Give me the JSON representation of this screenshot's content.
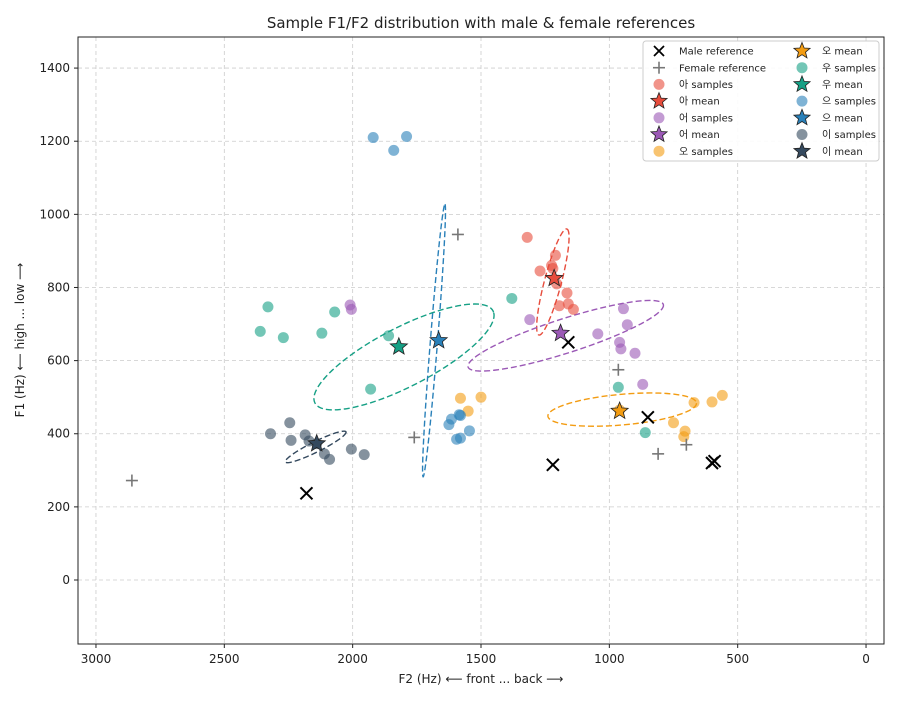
{
  "chart_data": {
    "type": "scatter",
    "title": "Sample F1/F2 distribution with male & female references",
    "xlabel": "F2 (Hz) ⟵ front ... back ⟶",
    "ylabel": "F1 (Hz) ⟵ high ... low ⟶",
    "xlim": [
      3070,
      -70
    ],
    "ylim": [
      1485,
      -175
    ],
    "x_reversed": true,
    "y_reversed": true,
    "xticks": [
      3000,
      2500,
      2000,
      1500,
      1000,
      500,
      0
    ],
    "yticks": [
      0,
      200,
      400,
      600,
      800,
      1000,
      1200,
      1400
    ],
    "grid": true,
    "legend_placement": "top-right",
    "male_reference": {
      "label": "Male reference",
      "color": "#000000",
      "points": [
        [
          2180,
          237
        ],
        [
          1220,
          315
        ],
        [
          850,
          445
        ],
        [
          1160,
          650
        ],
        [
          600,
          320
        ],
        [
          590,
          325
        ]
      ]
    },
    "female_reference": {
      "label": "Female reference",
      "color": "#777777",
      "points": [
        [
          2860,
          272
        ],
        [
          1760,
          390
        ],
        [
          810,
          345
        ],
        [
          700,
          370
        ],
        [
          965,
          575
        ],
        [
          1590,
          945
        ]
      ]
    },
    "vowels": [
      {
        "vowel": "아",
        "samples_label": "아 samples",
        "mean_label": "아 mean",
        "color": "#e74c3c",
        "mean": [
          1215,
          825
        ],
        "ellipse": {
          "cx": 1220,
          "cy": 815,
          "rx": 155,
          "ry": 32,
          "angle_deg": -69
        },
        "samples": [
          [
            1320,
            937
          ],
          [
            1270,
            845
          ],
          [
            1225,
            860
          ],
          [
            1220,
            852
          ],
          [
            1210,
            888
          ],
          [
            1195,
            750
          ],
          [
            1165,
            785
          ],
          [
            1160,
            755
          ],
          [
            1140,
            740
          ],
          [
            1205,
            810
          ]
        ]
      },
      {
        "vowel": "어",
        "samples_label": "어 samples",
        "mean_label": "어 mean",
        "color": "#9b59b6",
        "mean": [
          1190,
          675
        ],
        "ellipse": {
          "cx": 1170,
          "cy": 668,
          "rx": 390,
          "ry": 48,
          "angle_deg": -12.5
        },
        "samples": [
          [
            2005,
            740
          ],
          [
            2010,
            752
          ],
          [
            1310,
            712
          ],
          [
            1045,
            673
          ],
          [
            960,
            650
          ],
          [
            955,
            632
          ],
          [
            930,
            698
          ],
          [
            900,
            620
          ],
          [
            870,
            535
          ],
          [
            945,
            742
          ]
        ]
      },
      {
        "vowel": "오",
        "samples_label": "오 samples",
        "mean_label": "오 mean",
        "color": "#f39c12",
        "mean": [
          960,
          462
        ],
        "ellipse": {
          "cx": 950,
          "cy": 466,
          "rx": 290,
          "ry": 42,
          "angle_deg": -3.5
        },
        "samples": [
          [
            1580,
            497
          ],
          [
            1550,
            462
          ],
          [
            1500,
            500
          ],
          [
            750,
            430
          ],
          [
            710,
            392
          ],
          [
            705,
            407
          ],
          [
            670,
            485
          ],
          [
            600,
            487
          ],
          [
            560,
            505
          ],
          [
            960,
            465
          ]
        ]
      },
      {
        "vowel": "우",
        "samples_label": "우 samples",
        "mean_label": "우 mean",
        "color": "#16a085",
        "mean": [
          1820,
          638
        ],
        "ellipse": {
          "cx": 1800,
          "cy": 610,
          "rx": 370,
          "ry": 85,
          "angle_deg": -19
        },
        "samples": [
          [
            2360,
            680
          ],
          [
            2330,
            747
          ],
          [
            2270,
            663
          ],
          [
            2120,
            675
          ],
          [
            2070,
            733
          ],
          [
            1930,
            522
          ],
          [
            1860,
            668
          ],
          [
            1380,
            770
          ],
          [
            965,
            527
          ],
          [
            860,
            403
          ]
        ]
      },
      {
        "vowel": "으",
        "samples_label": "으 samples",
        "mean_label": "으 mean",
        "color": "#2980b9",
        "mean": [
          1665,
          655
        ],
        "ellipse": {
          "cx": 1683,
          "cy": 655,
          "rx": 375,
          "ry": 14,
          "angle_deg": -83.5
        },
        "samples": [
          [
            1920,
            1210
          ],
          [
            1840,
            1175
          ],
          [
            1790,
            1213
          ],
          [
            1625,
            425
          ],
          [
            1615,
            440
          ],
          [
            1595,
            385
          ],
          [
            1585,
            452
          ],
          [
            1580,
            450
          ],
          [
            1580,
            388
          ],
          [
            1545,
            408
          ]
        ]
      },
      {
        "vowel": "이",
        "samples_label": "이 samples",
        "mean_label": "이 mean",
        "color": "#34495e",
        "mean": [
          2140,
          373
        ],
        "ellipse": {
          "cx": 2144,
          "cy": 364,
          "rx": 125,
          "ry": 15,
          "angle_deg": -19
        },
        "samples": [
          [
            2320,
            400
          ],
          [
            2240,
            382
          ],
          [
            2245,
            430
          ],
          [
            2185,
            397
          ],
          [
            2170,
            380
          ],
          [
            2110,
            345
          ],
          [
            2090,
            330
          ],
          [
            2005,
            358
          ],
          [
            1955,
            343
          ],
          [
            2140,
            373
          ]
        ]
      }
    ]
  }
}
